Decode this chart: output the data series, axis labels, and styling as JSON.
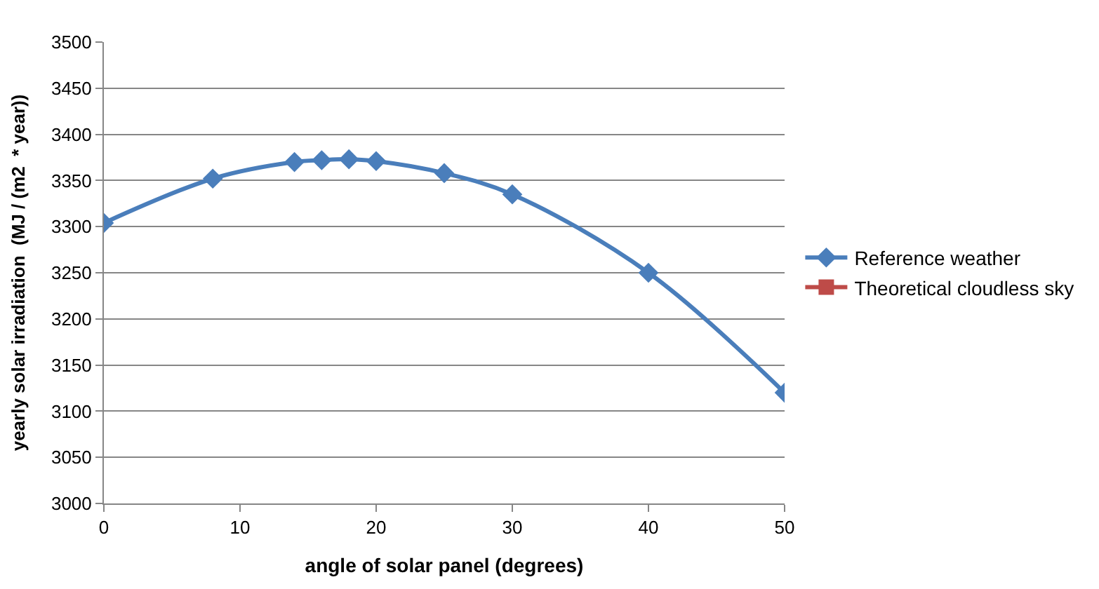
{
  "chart_data": {
    "type": "line",
    "xlabel": "angle of solar panel (degrees)",
    "ylabel": "yearly solar irradiation  (MJ / (m2  * year))",
    "x": [
      0,
      8,
      14,
      16,
      18,
      20,
      25,
      30,
      40,
      50
    ],
    "series": [
      {
        "name": "Reference weather",
        "color": "#4a7ebb",
        "marker": "diamond",
        "values": [
          3304,
          3352,
          3370,
          3372,
          3373,
          3371,
          3358,
          3335,
          3250,
          3120
        ]
      },
      {
        "name": "Theoretical cloudless sky",
        "color": "#be4b48",
        "marker": "square",
        "values": [
          null,
          null,
          null,
          null,
          null,
          null,
          null,
          null,
          null,
          null
        ]
      }
    ],
    "xlim": [
      0,
      50
    ],
    "xticks": [
      0,
      10,
      20,
      30,
      40,
      50
    ],
    "ylim": [
      3000,
      3500
    ],
    "yticks": [
      3000,
      3050,
      3100,
      3150,
      3200,
      3250,
      3300,
      3350,
      3400,
      3450,
      3500
    ],
    "grid": "y",
    "legend": "right"
  }
}
